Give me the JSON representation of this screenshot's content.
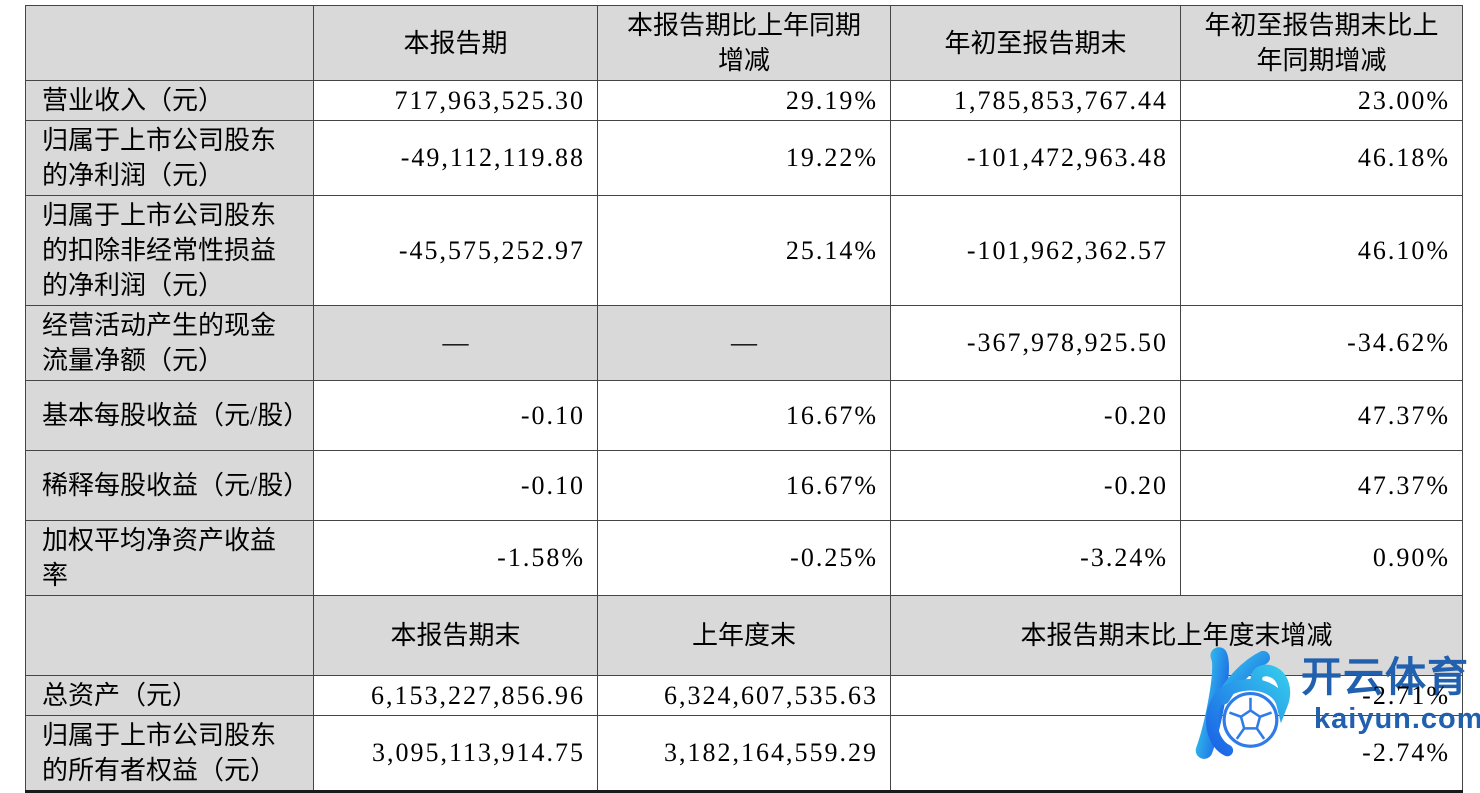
{
  "colors": {
    "table_header_bg": "#d9d9d9",
    "table_border": "#454545",
    "watermark_blue": "#2160ae",
    "watermark_gradient_start": "#35c9ec",
    "watermark_gradient_end": "#1b63e6"
  },
  "table": {
    "header1": [
      "本报告期",
      "本报告期比上年同期增减",
      "年初至报告期末",
      "年初至报告期末比上年同期增减"
    ],
    "rows1": [
      {
        "label": "营业收入（元）",
        "cells": [
          "717,963,525.30",
          "29.19%",
          "1,785,853,767.44",
          "23.00%"
        ]
      },
      {
        "label": "归属于上市公司股东的净利润（元）",
        "cells": [
          "-49,112,119.88",
          "19.22%",
          "-101,472,963.48",
          "46.18%"
        ]
      },
      {
        "label": "归属于上市公司股东的扣除非经常性损益的净利润（元）",
        "cells": [
          "-45,575,252.97",
          "25.14%",
          "-101,962,362.57",
          "46.10%"
        ]
      },
      {
        "label": "经营活动产生的现金流量净额（元）",
        "cells": [
          "—",
          "—",
          "-367,978,925.50",
          "-34.62%"
        ],
        "dash": [
          0,
          1
        ]
      },
      {
        "label": "基本每股收益（元/股）",
        "cells": [
          "-0.10",
          "16.67%",
          "-0.20",
          "47.37%"
        ]
      },
      {
        "label": "稀释每股收益（元/股）",
        "cells": [
          "-0.10",
          "16.67%",
          "-0.20",
          "47.37%"
        ]
      },
      {
        "label": "加权平均净资产收益率",
        "cells": [
          "-1.58%",
          "-0.25%",
          "-3.24%",
          "0.90%"
        ]
      }
    ],
    "header2": [
      "本报告期末",
      "上年度末",
      "本报告期末比上年度末增减"
    ],
    "rows2": [
      {
        "label": "总资产（元）",
        "cells": [
          "6,153,227,856.96",
          "6,324,607,535.63",
          "-2.71%"
        ]
      },
      {
        "label": "归属于上市公司股东的所有者权益（元）",
        "cells": [
          "3,095,113,914.75",
          "3,182,164,559.29",
          "-2.74%"
        ]
      }
    ]
  },
  "watermark": {
    "brand": "开云体育",
    "domain": "kaiyun.com",
    "logo": "kaiyun-k-soccer-logo"
  }
}
